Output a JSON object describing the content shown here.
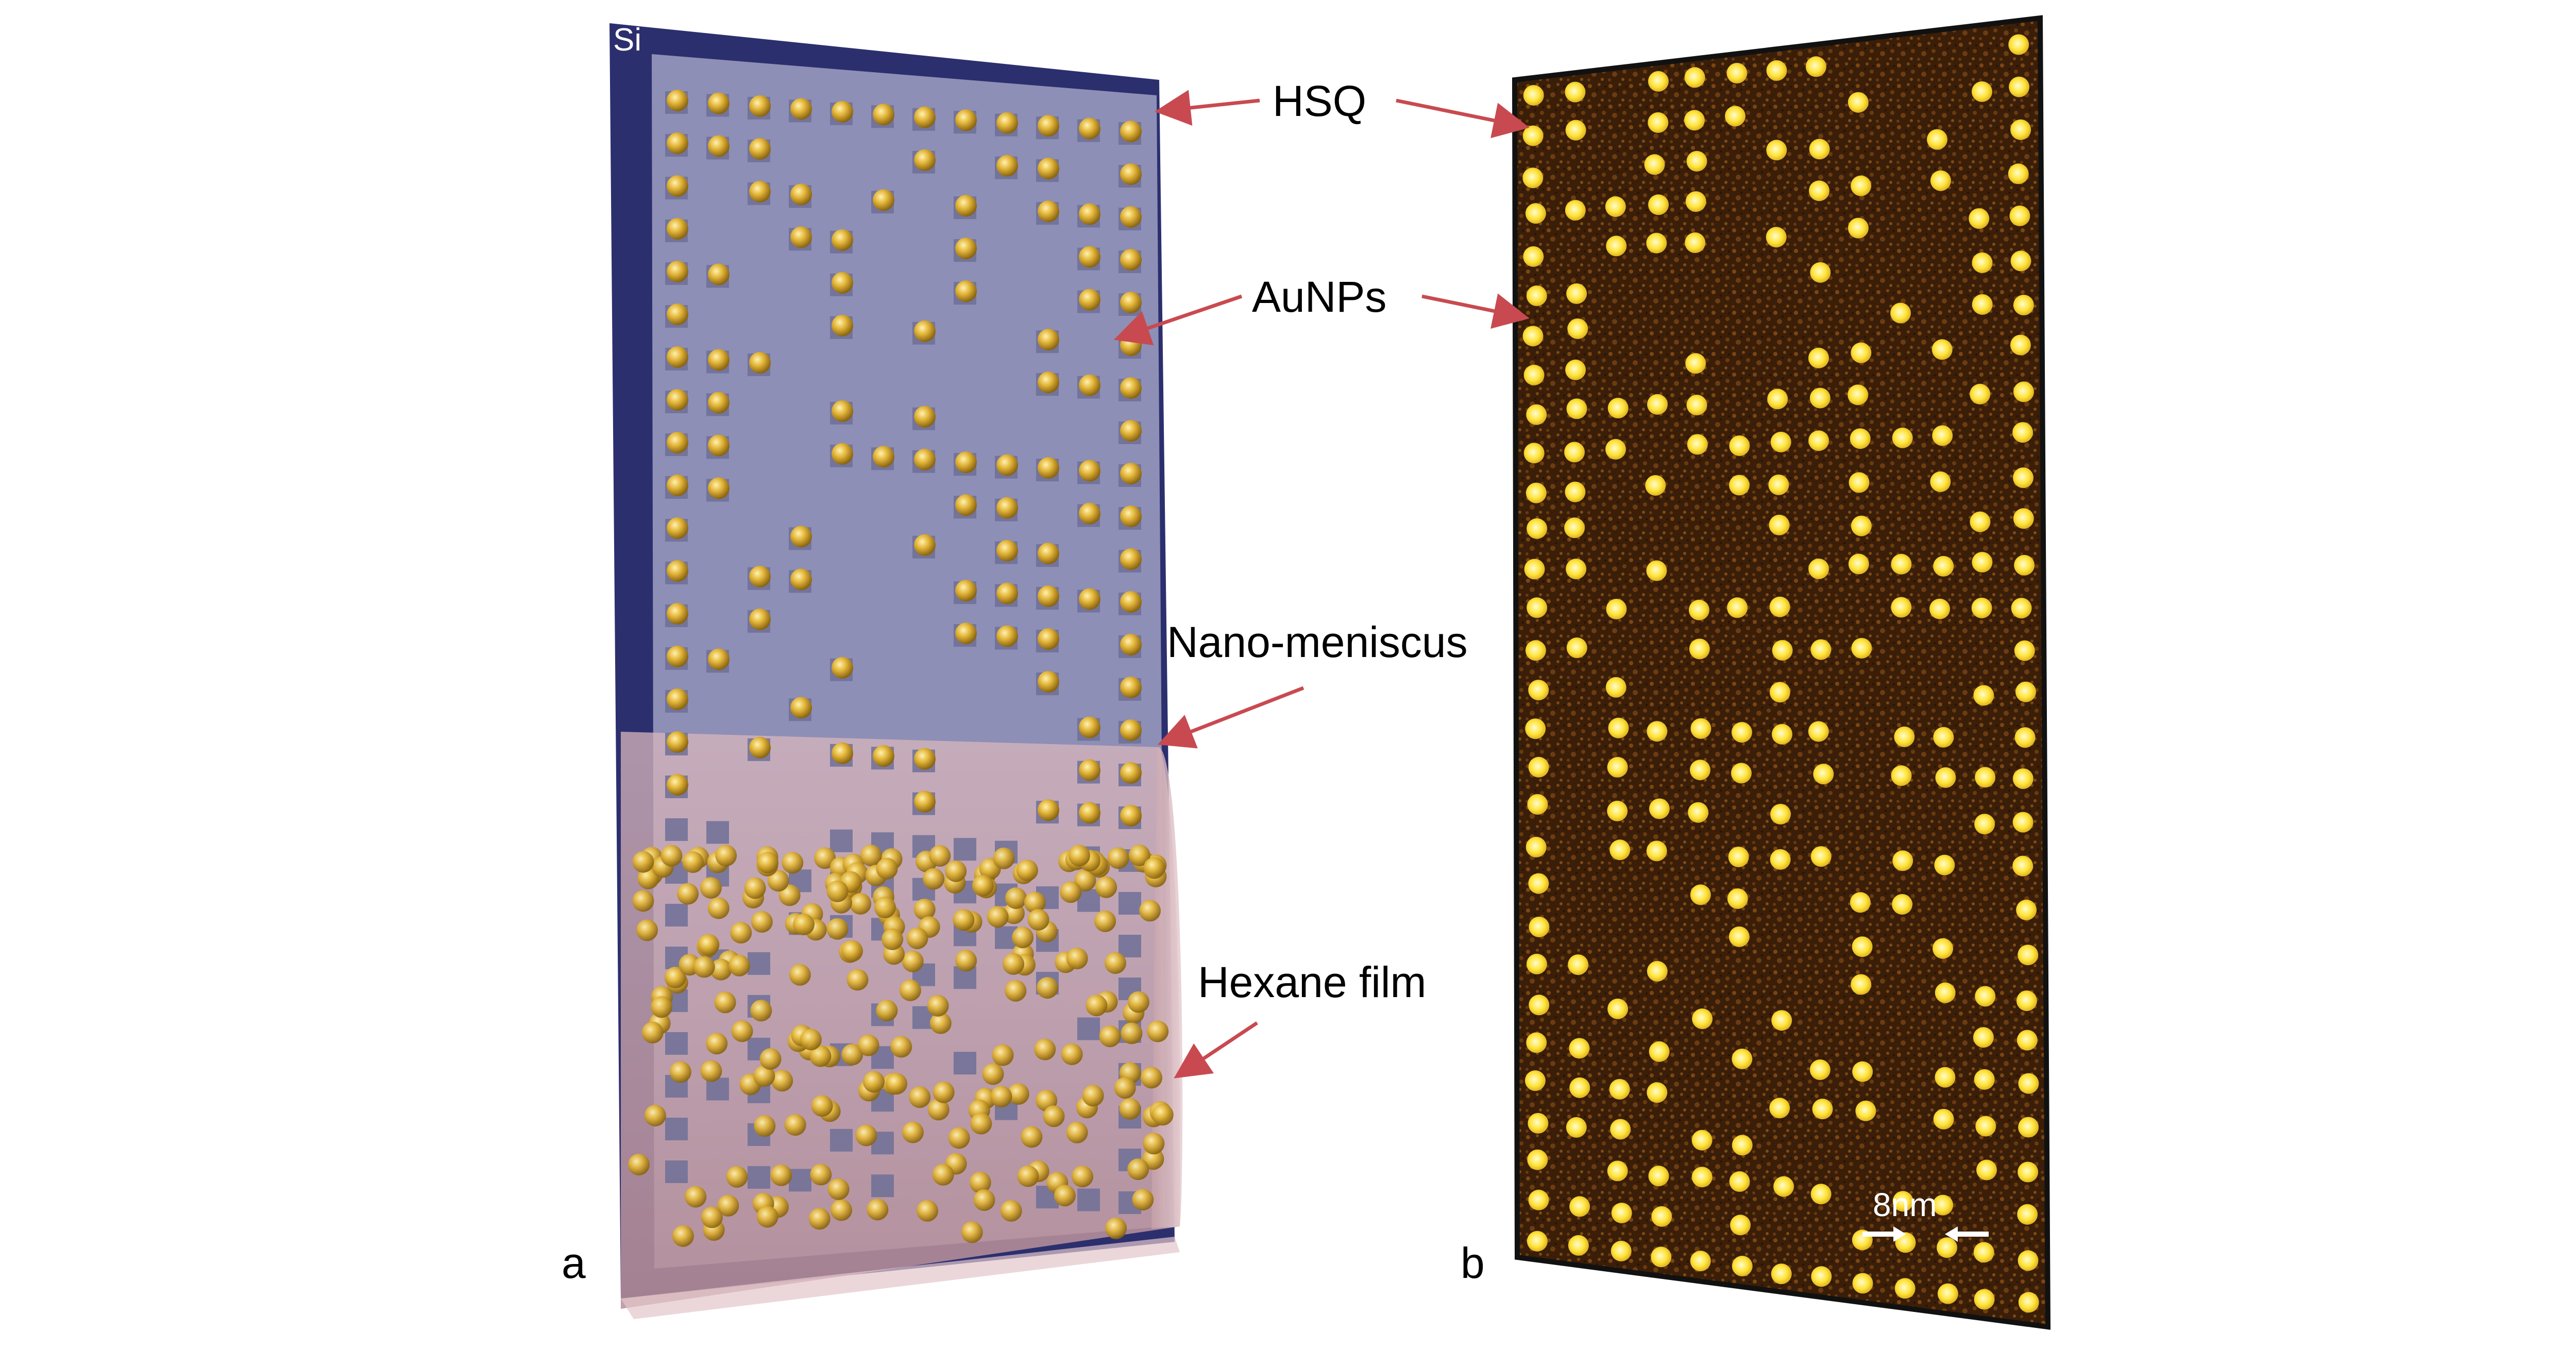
{
  "labels": {
    "si": "Si",
    "hsq": "HSQ",
    "aunps": "AuNPs",
    "nano_meniscus": "Nano-meniscus",
    "hexane_film": "Hexane film",
    "panel_a": "a",
    "panel_b": "b",
    "scale": "8nm"
  },
  "colors": {
    "si_substrate": "#2c2f6e",
    "hsq_layer": "#8e8fb6",
    "hexane_film": "#c9a0a6",
    "gold_particle": "#e0b83a",
    "leader_line": "#c84a50",
    "stem_background": "#2a1606",
    "stem_texture": "#b0661d",
    "stem_particle": "#ffe23a"
  }
}
